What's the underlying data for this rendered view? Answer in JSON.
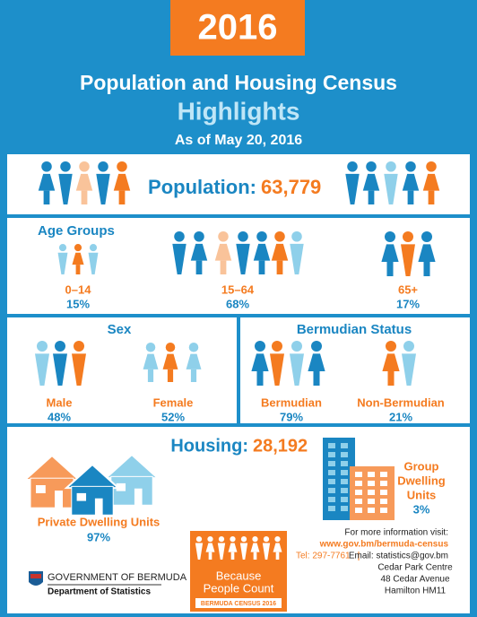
{
  "header": {
    "year": "2016",
    "title": "Population and Housing Census",
    "subtitle": "Highlights",
    "date": "As of May 20, 2016"
  },
  "population": {
    "label": "Population:",
    "value": "63,779"
  },
  "age_groups": {
    "title": "Age Groups",
    "groups": [
      {
        "label": "0–14",
        "percent": "15%"
      },
      {
        "label": "15–64",
        "percent": "68%"
      },
      {
        "label": "65+",
        "percent": "17%"
      }
    ]
  },
  "sex": {
    "title": "Sex",
    "groups": [
      {
        "label": "Male",
        "percent": "48%"
      },
      {
        "label": "Female",
        "percent": "52%"
      }
    ]
  },
  "bermudian_status": {
    "title": "Bermudian Status",
    "groups": [
      {
        "label": "Bermudian",
        "percent": "79%"
      },
      {
        "label": "Non-Bermudian",
        "percent": "21%"
      }
    ]
  },
  "housing": {
    "label": "Housing:",
    "value": "28,192",
    "private": {
      "label": "Private Dwelling Units",
      "percent": "97%"
    },
    "group": {
      "label_lines": [
        "Group",
        "Dwelling",
        "Units"
      ],
      "percent": "3%"
    }
  },
  "footer": {
    "government": "GOVERNMENT OF BERMUDA",
    "department": "Department of Statistics",
    "logo": {
      "line1": "Because",
      "line2": "People Count",
      "caption": "BERMUDA CENSUS 2016"
    },
    "contact": {
      "intro": "For more information visit:",
      "url": "www.gov.bm/bermuda-census",
      "tel": "Tel: 297-7761",
      "email": "Email: statistics@gov.bm",
      "address": [
        "Cedar Park Centre",
        "48 Cedar Avenue",
        "Hamilton HM11"
      ]
    }
  }
}
